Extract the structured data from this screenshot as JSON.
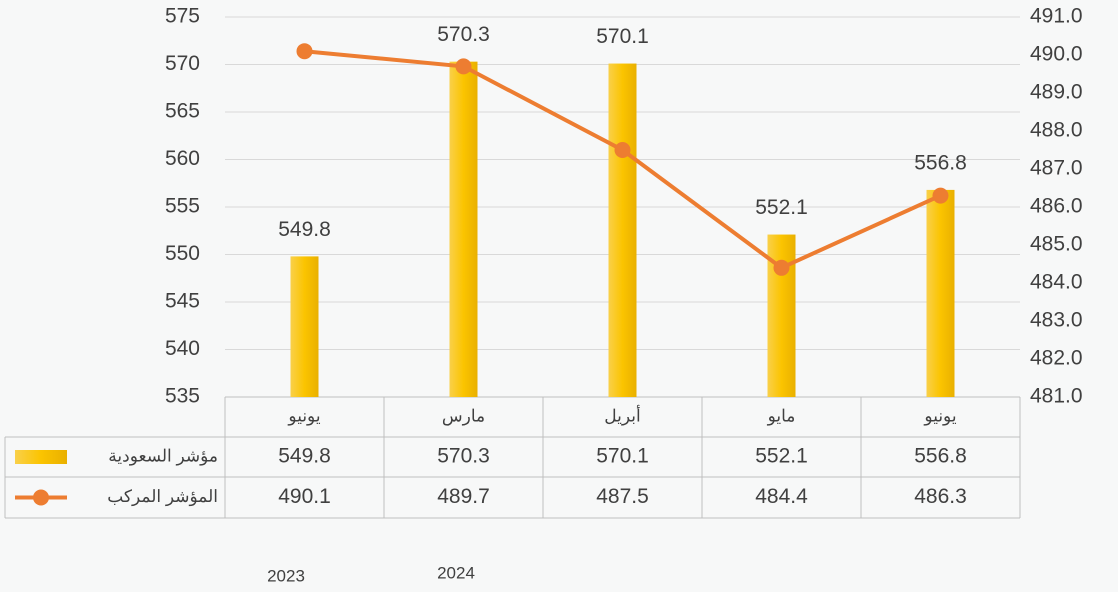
{
  "chart_data": {
    "type": "bar_line",
    "categories": [
      "يونيو",
      "مارس",
      "أبريل",
      "مايو",
      "يونيو"
    ],
    "series": [
      {
        "name": "مؤشر السعودية",
        "type": "bar",
        "color": "#f6c21a",
        "values": [
          549.8,
          570.3,
          570.1,
          552.1,
          556.8
        ]
      },
      {
        "name": "المؤشر المركب",
        "type": "line",
        "axis": "y2",
        "color": "#ed7d31",
        "values": [
          490.1,
          489.7,
          487.5,
          484.4,
          486.3
        ]
      }
    ],
    "ylim": [
      535,
      575
    ],
    "yticks": [
      535,
      540,
      545,
      550,
      555,
      560,
      565,
      570,
      575
    ],
    "y2lim": [
      481,
      491
    ],
    "y2ticks": [
      {
        "value": 481,
        "label": "481.0"
      },
      {
        "value": 482,
        "label": "482.0"
      },
      {
        "value": 483,
        "label": "483.0"
      },
      {
        "value": 484,
        "label": "484.0"
      },
      {
        "value": 485,
        "label": "485.0"
      },
      {
        "value": 486,
        "label": "486.0"
      },
      {
        "value": 487,
        "label": "487.0"
      },
      {
        "value": 488,
        "label": "488.0"
      },
      {
        "value": 489,
        "label": "489.0"
      },
      {
        "value": 490,
        "label": "490.0"
      },
      {
        "value": 491,
        "label": "491.0"
      }
    ],
    "grid": true,
    "annotations": [
      "2023",
      "2024"
    ]
  }
}
